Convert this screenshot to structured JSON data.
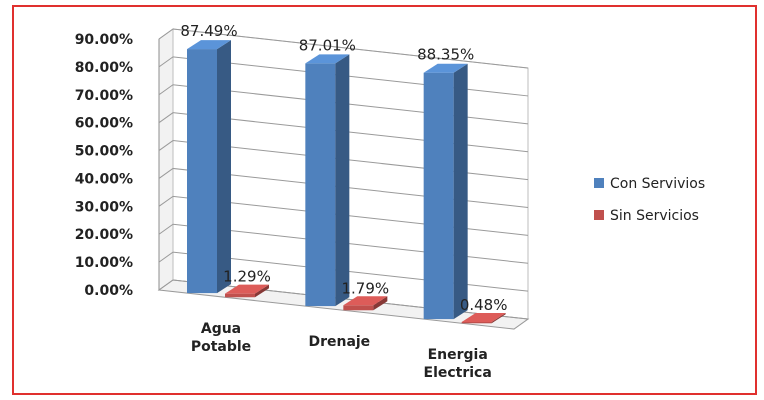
{
  "chart_data": {
    "type": "bar",
    "title": "",
    "xlabel": "",
    "ylabel": "",
    "categories": [
      [
        "Agua",
        "Potable"
      ],
      [
        "Drenaje"
      ],
      [
        "Energia",
        "Electrica"
      ]
    ],
    "series": [
      {
        "name": "Con Servivios",
        "values": [
          87.49,
          87.01,
          88.35
        ],
        "labels": [
          "87.49%",
          "87.01%",
          "88.35%"
        ],
        "color": "#4f81bd"
      },
      {
        "name": "Sin Servicios",
        "values": [
          1.29,
          1.79,
          0.48
        ],
        "labels": [
          "1.29%",
          "1.79%",
          "0.48%"
        ],
        "color": "#c0504d"
      }
    ],
    "y_ticks": [
      "0.00%",
      "10.00%",
      "20.00%",
      "30.00%",
      "40.00%",
      "50.00%",
      "60.00%",
      "70.00%",
      "80.00%",
      "90.00%"
    ],
    "ylim": [
      0,
      90
    ],
    "grid": true,
    "legend_position": "right",
    "style": "3d-column"
  }
}
